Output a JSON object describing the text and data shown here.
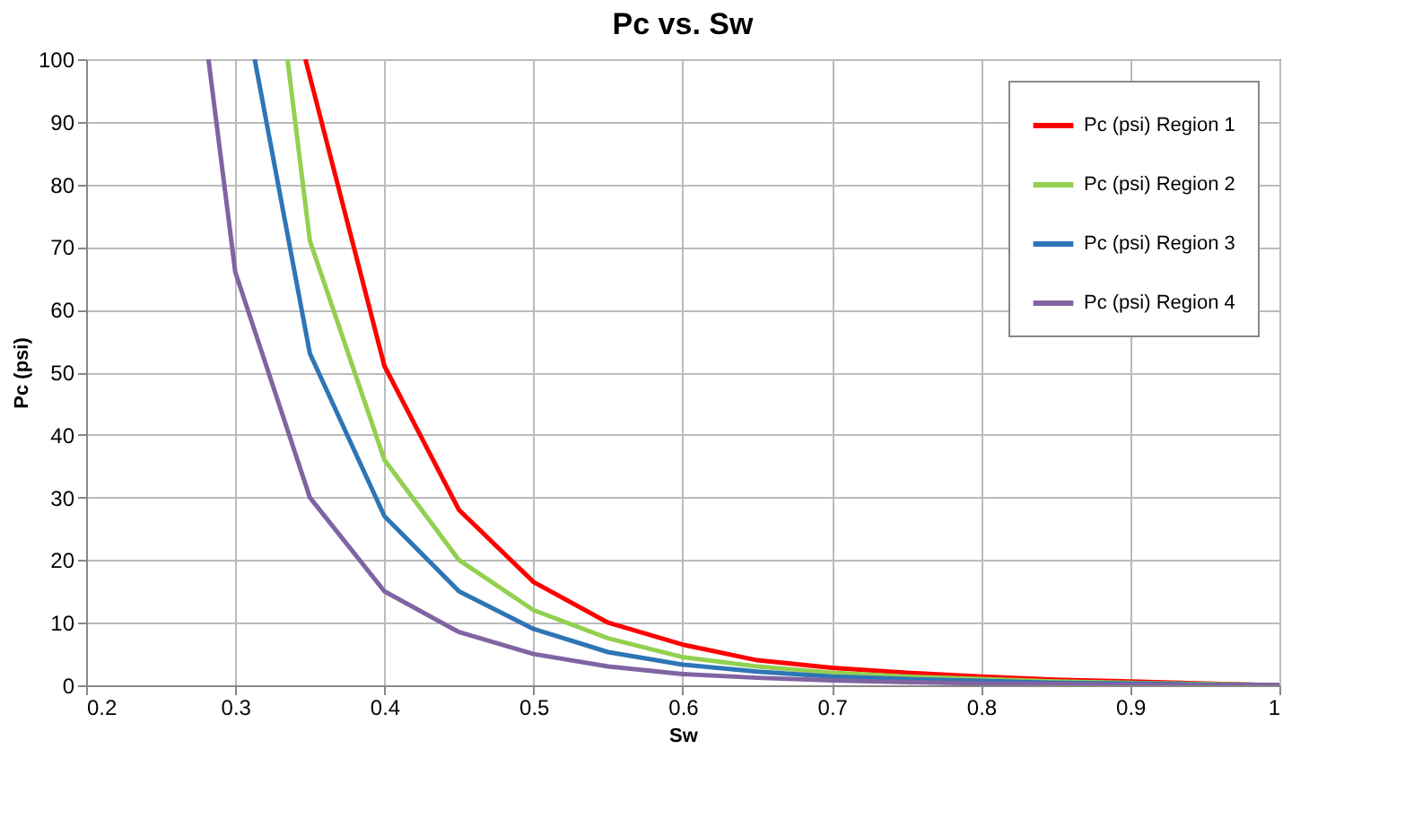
{
  "chart_data": {
    "type": "line",
    "title": "Pc vs. Sw",
    "xlabel": "Sw",
    "ylabel": "Pc (psi)",
    "xlim": [
      0.2,
      1
    ],
    "xticks": [
      0.2,
      0.3,
      0.4,
      0.5,
      0.6,
      0.7,
      0.8,
      0.9,
      1
    ],
    "ylim": [
      0,
      100
    ],
    "yticks": [
      0,
      10,
      20,
      30,
      40,
      50,
      60,
      70,
      80,
      90,
      100
    ],
    "grid": true,
    "legend": "top right",
    "marker": "none",
    "line_style": "solid",
    "series": [
      {
        "name": "Pc (psi) Region 1",
        "color": "#ff0000",
        "x": [
          0.347,
          0.4,
          0.45,
          0.5,
          0.55,
          0.6,
          0.65,
          0.7,
          0.75,
          0.8,
          0.85,
          0.9,
          0.95,
          1
        ],
        "values": [
          100,
          51,
          28,
          16.5,
          10,
          6.5,
          4,
          2.8,
          2,
          1.4,
          0.9,
          0.6,
          0.3,
          0
        ]
      },
      {
        "name": "Pc (psi) Region 2",
        "color": "#92d050",
        "x": [
          0.335,
          0.35,
          0.4,
          0.45,
          0.5,
          0.55,
          0.6,
          0.65,
          0.7,
          0.75,
          0.8,
          0.85,
          0.9,
          0.95,
          1
        ],
        "values": [
          100,
          71,
          36,
          20,
          12,
          7.5,
          4.5,
          3,
          2,
          1.4,
          1,
          0.6,
          0.4,
          0.2,
          0
        ]
      },
      {
        "name": "Pc (psi) Region 3",
        "color": "#2e75b6",
        "x": [
          0.313,
          0.35,
          0.4,
          0.45,
          0.5,
          0.55,
          0.6,
          0.65,
          0.7,
          0.75,
          0.8,
          0.85,
          0.9,
          0.95,
          1
        ],
        "values": [
          100,
          53,
          27,
          15,
          9,
          5.3,
          3.3,
          2.2,
          1.4,
          1,
          0.7,
          0.4,
          0.3,
          0.1,
          0
        ]
      },
      {
        "name": "Pc (psi) Region 4",
        "color": "#8064a2",
        "x": [
          0.282,
          0.3,
          0.35,
          0.4,
          0.45,
          0.5,
          0.55,
          0.6,
          0.65,
          0.7,
          0.75,
          0.8,
          0.85,
          0.9,
          0.95,
          1
        ],
        "values": [
          100,
          66,
          30,
          15,
          8.5,
          5,
          3,
          1.8,
          1.2,
          0.8,
          0.5,
          0.3,
          0.2,
          0.1,
          0.05,
          0
        ]
      }
    ]
  }
}
